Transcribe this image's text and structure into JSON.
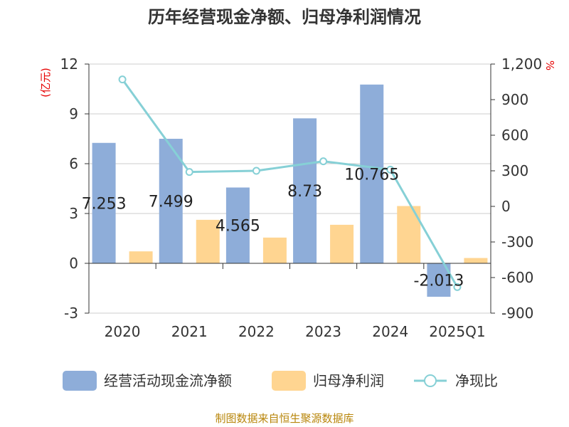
{
  "chart_data": {
    "type": "bar",
    "title": "历年经营现金净额、归母净利润情况",
    "categories": [
      "2020",
      "2021",
      "2022",
      "2023",
      "2024",
      "2025Q1"
    ],
    "series": [
      {
        "name": "经营活动现金流净额",
        "type": "bar",
        "axis": "left",
        "color": "#8eadd9",
        "values": [
          7.253,
          7.499,
          4.565,
          8.73,
          10.765,
          -2.013
        ],
        "labels": [
          "7.253",
          "7.499",
          "4.565",
          "8.73",
          "10.765",
          "-2.013"
        ]
      },
      {
        "name": "归母净利润",
        "type": "bar",
        "axis": "left",
        "color": "#ffd591",
        "values": [
          0.72,
          2.62,
          1.55,
          2.32,
          3.45,
          0.32
        ]
      },
      {
        "name": "净现比",
        "type": "line",
        "axis": "right",
        "color": "#86d0d6",
        "values": [
          1070,
          290,
          300,
          380,
          310,
          -680
        ]
      }
    ],
    "left_axis": {
      "unit": "(亿元)",
      "ylim": [
        -3,
        12
      ],
      "ticks": [
        {
          "v": -3,
          "t": "-3"
        },
        {
          "v": 0,
          "t": "0"
        },
        {
          "v": 3,
          "t": "3"
        },
        {
          "v": 6,
          "t": "6"
        },
        {
          "v": 9,
          "t": "9"
        },
        {
          "v": 12,
          "t": "12"
        }
      ]
    },
    "right_axis": {
      "unit": "%",
      "ylim": [
        -900,
        1200
      ],
      "ticks": [
        {
          "v": -900,
          "t": "-900"
        },
        {
          "v": -600,
          "t": "-600"
        },
        {
          "v": -300,
          "t": "-300"
        },
        {
          "v": 0,
          "t": "0"
        },
        {
          "v": 300,
          "t": "300"
        },
        {
          "v": 600,
          "t": "600"
        },
        {
          "v": 900,
          "t": "900"
        },
        {
          "v": 1200,
          "t": "1,200"
        }
      ]
    },
    "grid": true,
    "legend_position": "bottom",
    "source": "制图数据来自恒生聚源数据库"
  }
}
